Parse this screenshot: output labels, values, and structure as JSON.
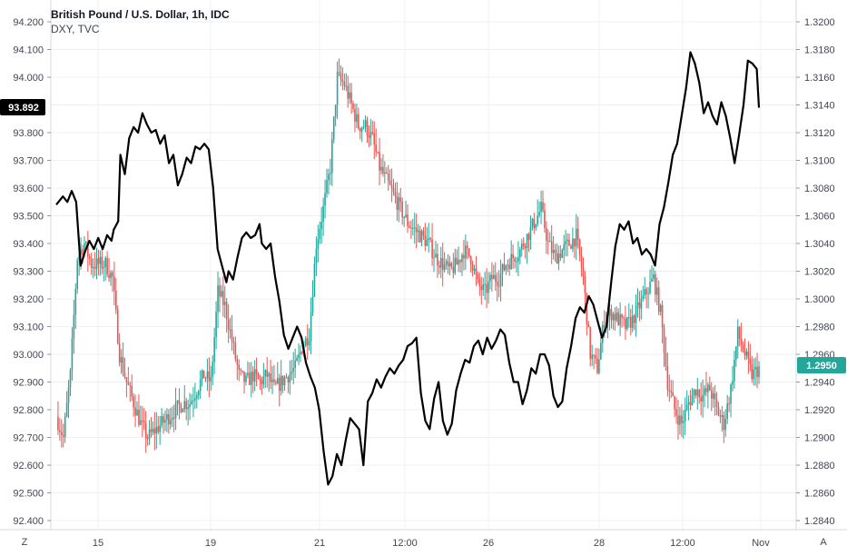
{
  "legend": {
    "title": "British Pound / U.S. Dollar, 1h, IDC",
    "subtitle": "DXY, TVC"
  },
  "buttons": {
    "left": "Z",
    "right": "A"
  },
  "colors": {
    "up": "#26a69a",
    "down": "#ef5350",
    "line": "#000000",
    "grid": "#eef0f3",
    "price_label_bg": "#26a69a",
    "dxy_label_bg": "#000000"
  },
  "chart_data": {
    "type": "candlestick",
    "left_axis": {
      "series": "DXY",
      "ylim": [
        92.35,
        94.25
      ],
      "ticks": [
        "94.200",
        "94.100",
        "94.000",
        "93.800",
        "93.700",
        "93.600",
        "93.500",
        "93.400",
        "93.300",
        "93.200",
        "93.100",
        "93.000",
        "92.900",
        "92.800",
        "92.700",
        "92.600",
        "92.500",
        "92.400"
      ],
      "current_label": "93.892"
    },
    "right_axis": {
      "series": "GBPUSD",
      "ylim": [
        1.2832,
        1.3208
      ],
      "ticks": [
        "1.3200",
        "1.3180",
        "1.3160",
        "1.3140",
        "1.3120",
        "1.3100",
        "1.3080",
        "1.3060",
        "1.3040",
        "1.3020",
        "1.3000",
        "1.2980",
        "1.2960",
        "1.2940",
        "1.2920",
        "1.2900",
        "1.2880",
        "1.2860",
        "1.2840"
      ],
      "current_label": "1.2950"
    },
    "x_ticks": [
      "15",
      "19",
      "21",
      "12:00",
      "26",
      "28",
      "12:00",
      "Nov"
    ],
    "gbpusd_anchors": [
      [
        0,
        1.2915
      ],
      [
        4,
        1.29
      ],
      [
        8,
        1.2945
      ],
      [
        12,
        1.303
      ],
      [
        16,
        1.304
      ],
      [
        20,
        1.3025
      ],
      [
        24,
        1.3025
      ],
      [
        28,
        1.3025
      ],
      [
        32,
        1.3015
      ],
      [
        36,
        1.296
      ],
      [
        40,
        1.294
      ],
      [
        44,
        1.2925
      ],
      [
        48,
        1.291
      ],
      [
        52,
        1.29
      ],
      [
        56,
        1.2905
      ],
      [
        60,
        1.291
      ],
      [
        64,
        1.2915
      ],
      [
        68,
        1.292
      ],
      [
        72,
        1.2925
      ],
      [
        76,
        1.2925
      ],
      [
        80,
        1.2935
      ],
      [
        84,
        1.2945
      ],
      [
        88,
        1.294
      ],
      [
        92,
        1.3005
      ],
      [
        96,
        1.2995
      ],
      [
        100,
        1.297
      ],
      [
        104,
        1.2945
      ],
      [
        108,
        1.294
      ],
      [
        112,
        1.2945
      ],
      [
        116,
        1.294
      ],
      [
        120,
        1.2945
      ],
      [
        124,
        1.2935
      ],
      [
        128,
        1.294
      ],
      [
        132,
        1.2945
      ],
      [
        136,
        1.295
      ],
      [
        140,
        1.2965
      ],
      [
        144,
        1.2975
      ],
      [
        148,
        1.304
      ],
      [
        152,
        1.3065
      ],
      [
        156,
        1.3095
      ],
      [
        160,
        1.316
      ],
      [
        164,
        1.3155
      ],
      [
        168,
        1.314
      ],
      [
        172,
        1.3125
      ],
      [
        176,
        1.3125
      ],
      [
        180,
        1.3115
      ],
      [
        184,
        1.3095
      ],
      [
        188,
        1.3085
      ],
      [
        192,
        1.3075
      ],
      [
        196,
        1.3065
      ],
      [
        200,
        1.3055
      ],
      [
        204,
        1.305
      ],
      [
        208,
        1.3045
      ],
      [
        212,
        1.304
      ],
      [
        216,
        1.303
      ],
      [
        220,
        1.3025
      ],
      [
        224,
        1.302
      ],
      [
        228,
        1.3025
      ],
      [
        232,
        1.3035
      ],
      [
        236,
        1.303
      ],
      [
        240,
        1.301
      ],
      [
        244,
        1.3005
      ],
      [
        248,
        1.3015
      ],
      [
        252,
        1.3015
      ],
      [
        256,
        1.3025
      ],
      [
        260,
        1.303
      ],
      [
        264,
        1.3035
      ],
      [
        268,
        1.3045
      ],
      [
        272,
        1.3055
      ],
      [
        276,
        1.3065
      ],
      [
        280,
        1.304
      ],
      [
        284,
        1.303
      ],
      [
        288,
        1.3035
      ],
      [
        292,
        1.304
      ],
      [
        296,
        1.3045
      ],
      [
        300,
        1.3015
      ],
      [
        304,
        1.296
      ],
      [
        308,
        1.295
      ],
      [
        312,
        1.2985
      ],
      [
        316,
        1.299
      ],
      [
        320,
        1.2985
      ],
      [
        324,
        1.298
      ],
      [
        328,
        1.2985
      ],
      [
        332,
        1.2995
      ],
      [
        336,
        1.3005
      ],
      [
        340,
        1.3015
      ],
      [
        344,
        1.299
      ],
      [
        348,
        1.294
      ],
      [
        352,
        1.292
      ],
      [
        356,
        1.291
      ],
      [
        360,
        1.2925
      ],
      [
        364,
        1.2935
      ],
      [
        368,
        1.293
      ],
      [
        372,
        1.2935
      ],
      [
        376,
        1.292
      ],
      [
        380,
        1.291
      ],
      [
        384,
        1.2935
      ],
      [
        388,
        1.2975
      ],
      [
        392,
        1.296
      ],
      [
        396,
        1.2945
      ],
      [
        400,
        1.295
      ]
    ],
    "dxy_line": [
      [
        0,
        93.54
      ],
      [
        6,
        93.57
      ],
      [
        10,
        93.55
      ],
      [
        14,
        93.59
      ],
      [
        18,
        93.55
      ],
      [
        22,
        93.32
      ],
      [
        26,
        93.37
      ],
      [
        30,
        93.41
      ],
      [
        34,
        93.38
      ],
      [
        38,
        93.42
      ],
      [
        42,
        93.38
      ],
      [
        46,
        93.43
      ],
      [
        50,
        93.41
      ],
      [
        52,
        93.45
      ],
      [
        56,
        93.48
      ],
      [
        58,
        93.72
      ],
      [
        62,
        93.65
      ],
      [
        66,
        93.78
      ],
      [
        70,
        93.82
      ],
      [
        74,
        93.8
      ],
      [
        78,
        93.87
      ],
      [
        82,
        93.83
      ],
      [
        86,
        93.8
      ],
      [
        90,
        93.81
      ],
      [
        94,
        93.76
      ],
      [
        98,
        93.79
      ],
      [
        102,
        93.69
      ],
      [
        106,
        93.72
      ],
      [
        110,
        93.61
      ],
      [
        114,
        93.65
      ],
      [
        118,
        93.71
      ],
      [
        122,
        93.69
      ],
      [
        126,
        93.75
      ],
      [
        130,
        93.74
      ],
      [
        134,
        93.76
      ],
      [
        138,
        93.74
      ],
      [
        142,
        93.6
      ],
      [
        146,
        93.38
      ],
      [
        150,
        93.32
      ],
      [
        154,
        93.26
      ],
      [
        156,
        93.3
      ],
      [
        160,
        93.27
      ],
      [
        164,
        93.35
      ],
      [
        168,
        93.42
      ],
      [
        172,
        93.44
      ],
      [
        176,
        93.42
      ],
      [
        180,
        93.43
      ],
      [
        184,
        93.47
      ],
      [
        186,
        93.4
      ],
      [
        190,
        93.38
      ],
      [
        194,
        93.4
      ],
      [
        198,
        93.28
      ],
      [
        202,
        93.19
      ],
      [
        206,
        93.07
      ],
      [
        210,
        93.02
      ],
      [
        214,
        93.06
      ],
      [
        218,
        93.1
      ],
      [
        222,
        93.06
      ],
      [
        226,
        92.97
      ],
      [
        230,
        92.92
      ],
      [
        234,
        92.88
      ],
      [
        238,
        92.8
      ],
      [
        242,
        92.65
      ],
      [
        246,
        92.53
      ],
      [
        250,
        92.56
      ],
      [
        254,
        92.64
      ],
      [
        258,
        92.6
      ],
      [
        262,
        92.69
      ],
      [
        266,
        92.77
      ],
      [
        270,
        92.75
      ],
      [
        274,
        92.73
      ],
      [
        278,
        92.6
      ],
      [
        282,
        92.83
      ],
      [
        286,
        92.86
      ],
      [
        290,
        92.91
      ],
      [
        294,
        92.88
      ],
      [
        298,
        92.92
      ],
      [
        302,
        92.95
      ],
      [
        306,
        92.93
      ],
      [
        310,
        92.96
      ],
      [
        314,
        92.98
      ],
      [
        318,
        93.03
      ],
      [
        322,
        93.04
      ],
      [
        326,
        93.06
      ],
      [
        330,
        92.86
      ],
      [
        334,
        92.76
      ],
      [
        338,
        92.73
      ],
      [
        342,
        92.84
      ],
      [
        346,
        92.9
      ],
      [
        350,
        92.76
      ],
      [
        354,
        92.71
      ],
      [
        358,
        92.75
      ],
      [
        362,
        92.87
      ],
      [
        366,
        92.93
      ],
      [
        370,
        92.98
      ],
      [
        374,
        92.97
      ],
      [
        378,
        93.03
      ],
      [
        382,
        93.05
      ],
      [
        386,
        93.0
      ],
      [
        390,
        93.06
      ],
      [
        394,
        93.02
      ],
      [
        398,
        93.05
      ],
      [
        402,
        93.09
      ],
      [
        406,
        93.07
      ],
      [
        410,
        92.97
      ],
      [
        414,
        92.9
      ],
      [
        418,
        92.9
      ],
      [
        422,
        92.82
      ],
      [
        426,
        92.87
      ],
      [
        430,
        92.95
      ],
      [
        434,
        92.93
      ],
      [
        438,
        93.0
      ],
      [
        442,
        93.0
      ],
      [
        446,
        92.96
      ],
      [
        450,
        92.85
      ],
      [
        454,
        92.81
      ],
      [
        458,
        92.83
      ],
      [
        462,
        92.95
      ],
      [
        466,
        93.03
      ],
      [
        470,
        93.13
      ],
      [
        474,
        93.17
      ],
      [
        478,
        93.15
      ],
      [
        482,
        93.21
      ],
      [
        486,
        93.18
      ],
      [
        490,
        93.12
      ],
      [
        494,
        93.06
      ],
      [
        498,
        93.1
      ],
      [
        502,
        93.25
      ],
      [
        506,
        93.39
      ],
      [
        510,
        93.47
      ],
      [
        514,
        93.45
      ],
      [
        518,
        93.48
      ],
      [
        522,
        93.4
      ],
      [
        526,
        93.42
      ],
      [
        530,
        93.36
      ],
      [
        534,
        93.38
      ],
      [
        538,
        93.36
      ],
      [
        542,
        93.32
      ],
      [
        546,
        93.47
      ],
      [
        550,
        93.53
      ],
      [
        554,
        93.62
      ],
      [
        558,
        93.72
      ],
      [
        562,
        93.76
      ],
      [
        566,
        93.86
      ],
      [
        570,
        93.96
      ],
      [
        574,
        94.09
      ],
      [
        578,
        94.05
      ],
      [
        582,
        93.98
      ],
      [
        586,
        93.87
      ],
      [
        590,
        93.91
      ],
      [
        594,
        93.86
      ],
      [
        598,
        93.83
      ],
      [
        602,
        93.91
      ],
      [
        606,
        93.86
      ],
      [
        610,
        93.78
      ],
      [
        614,
        93.69
      ],
      [
        618,
        93.79
      ],
      [
        622,
        93.9
      ],
      [
        626,
        94.06
      ],
      [
        630,
        94.05
      ],
      [
        634,
        94.03
      ],
      [
        636,
        93.89
      ]
    ]
  }
}
